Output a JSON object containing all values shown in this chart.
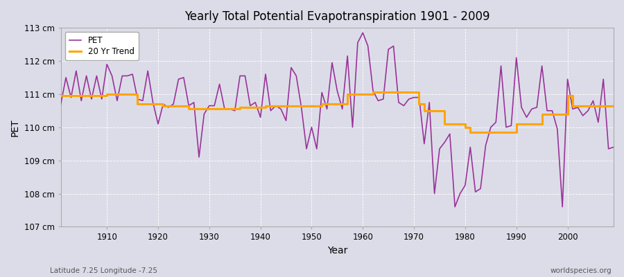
{
  "title": "Yearly Total Potential Evapotranspiration 1901 - 2009",
  "ylabel": "PET",
  "xlabel": "Year",
  "footer_left": "Latitude 7.25 Longitude -7.25",
  "footer_right": "worldspecies.org",
  "pet_color": "#993399",
  "trend_color": "#FFA500",
  "background_color": "#DCDCE8",
  "plot_bg_color": "#DCDCE8",
  "fig_bg_color": "#DCDCE8",
  "ylim": [
    107,
    113
  ],
  "yticks": [
    107,
    108,
    109,
    110,
    111,
    112,
    113
  ],
  "ytick_labels": [
    "107 cm",
    "108 cm",
    "109 cm",
    "110 cm",
    "111 cm",
    "112 cm",
    "113 cm"
  ],
  "years": [
    1901,
    1902,
    1903,
    1904,
    1905,
    1906,
    1907,
    1908,
    1909,
    1910,
    1911,
    1912,
    1913,
    1914,
    1915,
    1916,
    1917,
    1918,
    1919,
    1920,
    1921,
    1922,
    1923,
    1924,
    1925,
    1926,
    1927,
    1928,
    1929,
    1930,
    1931,
    1932,
    1933,
    1934,
    1935,
    1936,
    1937,
    1938,
    1939,
    1940,
    1941,
    1942,
    1943,
    1944,
    1945,
    1946,
    1947,
    1948,
    1949,
    1950,
    1951,
    1952,
    1953,
    1954,
    1955,
    1956,
    1957,
    1958,
    1959,
    1960,
    1961,
    1962,
    1963,
    1964,
    1965,
    1966,
    1967,
    1968,
    1969,
    1970,
    1971,
    1972,
    1973,
    1974,
    1975,
    1976,
    1977,
    1978,
    1979,
    1980,
    1981,
    1982,
    1983,
    1984,
    1985,
    1986,
    1987,
    1988,
    1989,
    1990,
    1991,
    1992,
    1993,
    1994,
    1995,
    1996,
    1997,
    1998,
    1999,
    2000,
    2001,
    2002,
    2003,
    2004,
    2005,
    2006,
    2007,
    2008,
    2009
  ],
  "pet_values": [
    110.7,
    111.5,
    110.9,
    111.7,
    110.8,
    111.55,
    110.85,
    111.55,
    110.85,
    111.9,
    111.55,
    110.8,
    111.55,
    111.55,
    111.6,
    110.85,
    110.8,
    111.7,
    110.75,
    110.1,
    110.7,
    110.6,
    110.7,
    111.45,
    111.5,
    110.65,
    110.75,
    109.1,
    110.4,
    110.65,
    110.65,
    111.3,
    110.55,
    110.55,
    110.5,
    111.55,
    111.55,
    110.65,
    110.75,
    110.3,
    111.6,
    110.5,
    110.65,
    110.55,
    110.2,
    111.8,
    111.55,
    110.6,
    109.35,
    110.0,
    109.35,
    111.05,
    110.55,
    111.95,
    111.1,
    110.55,
    112.15,
    110.0,
    112.55,
    112.85,
    112.45,
    111.1,
    110.8,
    110.85,
    112.35,
    112.45,
    110.75,
    110.65,
    110.85,
    110.9,
    110.9,
    109.5,
    110.75,
    108.0,
    109.35,
    109.55,
    109.8,
    107.6,
    108.0,
    108.25,
    109.4,
    108.05,
    108.15,
    109.45,
    110.0,
    110.15,
    111.85,
    110.0,
    110.05,
    112.1,
    110.6,
    110.3,
    110.55,
    110.6,
    111.85,
    110.5,
    110.5,
    109.95,
    107.6,
    111.45,
    110.55,
    110.6,
    110.35,
    110.5,
    110.8,
    110.15,
    111.45,
    109.35,
    109.4
  ],
  "trend_years": [
    1901,
    1902,
    1903,
    1904,
    1905,
    1906,
    1907,
    1908,
    1909,
    1910,
    1911,
    1912,
    1913,
    1914,
    1915,
    1916,
    1917,
    1918,
    1919,
    1920,
    1921,
    1922,
    1923,
    1924,
    1925,
    1926,
    1927,
    1928,
    1929,
    1930,
    1931,
    1932,
    1933,
    1934,
    1935,
    1936,
    1937,
    1938,
    1939,
    1940,
    1941,
    1942,
    1943,
    1944,
    1945,
    1946,
    1947,
    1948,
    1949,
    1950,
    1951,
    1952,
    1953,
    1954,
    1955,
    1956,
    1957,
    1958,
    1959,
    1960,
    1961,
    1962,
    1963,
    1964,
    1965,
    1966,
    1967,
    1968,
    1969,
    1970,
    1971,
    1972,
    1973,
    1974,
    1975,
    1976,
    1977,
    1978,
    1979,
    1980,
    1981,
    1982,
    1983,
    1984,
    1985,
    1986,
    1987,
    1988,
    1989,
    1990,
    1991,
    1992,
    1993,
    1994,
    1995,
    1996,
    1997,
    1998,
    1999,
    2000,
    2001,
    2002,
    2003,
    2004,
    2005,
    2006,
    2007,
    2008,
    2009
  ],
  "trend_values": [
    110.95,
    110.95,
    110.95,
    110.95,
    110.95,
    110.95,
    110.95,
    110.95,
    110.95,
    111.0,
    111.0,
    111.0,
    111.0,
    111.0,
    111.0,
    110.7,
    110.7,
    110.7,
    110.7,
    110.7,
    110.65,
    110.65,
    110.65,
    110.65,
    110.65,
    110.55,
    110.55,
    110.55,
    110.55,
    110.55,
    110.55,
    110.55,
    110.55,
    110.55,
    110.55,
    110.6,
    110.6,
    110.6,
    110.6,
    110.6,
    110.65,
    110.65,
    110.65,
    110.65,
    110.65,
    110.65,
    110.65,
    110.65,
    110.65,
    110.65,
    110.65,
    110.7,
    110.7,
    110.7,
    110.7,
    110.7,
    111.0,
    111.0,
    111.0,
    111.0,
    111.0,
    111.05,
    111.05,
    111.05,
    111.05,
    111.05,
    111.05,
    111.05,
    111.05,
    111.05,
    110.7,
    110.5,
    110.5,
    110.5,
    110.5,
    110.1,
    110.1,
    110.1,
    110.1,
    110.0,
    109.85,
    109.85,
    109.85,
    109.85,
    109.85,
    109.85,
    109.85,
    109.85,
    109.85,
    110.1,
    110.1,
    110.1,
    110.1,
    110.1,
    110.4,
    110.4,
    110.4,
    110.4,
    110.4,
    110.95,
    110.65,
    110.65,
    110.65,
    110.65,
    110.65,
    110.65,
    110.65,
    110.65,
    110.65
  ]
}
